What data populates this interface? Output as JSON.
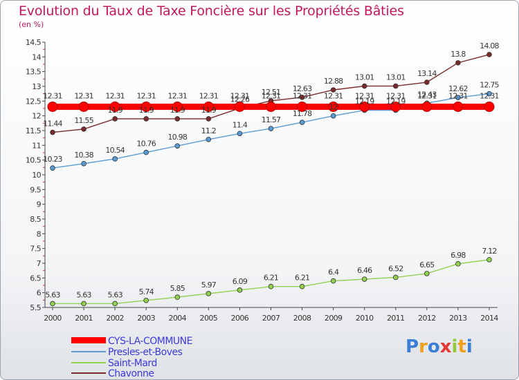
{
  "chart_data": {
    "type": "line",
    "title": "Evolution du Taux de Taxe Foncière sur les Propriétés Bâties",
    "unit_label": "(en %)",
    "xlabel": "",
    "ylabel": "",
    "categories": [
      "2000",
      "2001",
      "2002",
      "2003",
      "2004",
      "2005",
      "2006",
      "2007",
      "2008",
      "2009",
      "2010",
      "2011",
      "2012",
      "2013",
      "2014"
    ],
    "y_ticks": [
      "5.5",
      "6",
      "6.5",
      "7",
      "7.5",
      "8",
      "8.5",
      "9",
      "9.5",
      "10",
      "10.5",
      "11",
      "11.5",
      "12",
      "12.5",
      "13",
      "13.5",
      "14",
      "14.5"
    ],
    "ylim": [
      5.5,
      14.5
    ],
    "series": [
      {
        "name": "CYS-LA-COMMUNE",
        "color": "#ff0000",
        "values": [
          12.31,
          12.31,
          12.31,
          12.31,
          12.31,
          12.31,
          12.31,
          12.31,
          12.31,
          12.31,
          12.31,
          12.31,
          12.31,
          12.31,
          12.31
        ],
        "labels": [
          "12.31",
          "12.31",
          "12.31",
          "12.31",
          "12.31",
          "12.31",
          "12.31",
          "12.31",
          "12.31",
          "12.31",
          "12.31",
          "12.31",
          "12.31",
          "12.31",
          "12.31"
        ]
      },
      {
        "name": "Presles-et-Boves",
        "color": "#5b9bd5",
        "values": [
          10.23,
          10.38,
          10.54,
          10.76,
          10.98,
          11.2,
          11.4,
          11.57,
          11.78,
          12.0,
          12.19,
          12.19,
          12.43,
          12.62,
          12.75
        ],
        "labels": [
          "10.23",
          "10.38",
          "10.54",
          "10.76",
          "10.98",
          "11.2",
          "11.4",
          "11.57",
          "11.78",
          "12",
          "12.19",
          "12.19",
          "12.43",
          "12.62",
          "12.75"
        ]
      },
      {
        "name": "Saint-Mard",
        "color": "#92d050",
        "values": [
          5.63,
          5.63,
          5.63,
          5.74,
          5.85,
          5.97,
          6.09,
          6.21,
          6.21,
          6.4,
          6.46,
          6.52,
          6.65,
          6.98,
          7.12
        ],
        "labels": [
          "5.63",
          "5.63",
          "5.63",
          "5.74",
          "5.85",
          "5.97",
          "6.09",
          "6.21",
          "6.21",
          "6.4",
          "6.46",
          "6.52",
          "6.65",
          "6.98",
          "7.12"
        ]
      },
      {
        "name": "Chavonne",
        "color": "#7b2a2a",
        "values": [
          11.44,
          11.55,
          11.9,
          11.9,
          11.9,
          11.9,
          12.26,
          12.51,
          12.63,
          12.88,
          13.01,
          13.01,
          13.14,
          13.8,
          14.08
        ],
        "labels": [
          "11.44",
          "11.55",
          "11.9",
          "11.9",
          "11.9",
          "11.9",
          "12.26",
          "12.51",
          "12.63",
          "12.88",
          "13.01",
          "13.01",
          "13.14",
          "13.8",
          "14.08"
        ]
      }
    ],
    "legend_position": "bottom-left",
    "grid": false
  },
  "legend": {
    "items": [
      {
        "label": "CYS-LA-COMMUNE",
        "color": "#ff0000"
      },
      {
        "label": "Presles-et-Boves",
        "color": "#5b9bd5"
      },
      {
        "label": "Saint-Mard",
        "color": "#92d050"
      },
      {
        "label": "Chavonne",
        "color": "#7b2a2a"
      }
    ]
  },
  "logo": {
    "letters": [
      "P",
      "r",
      "o",
      "x",
      "i",
      "t",
      "i"
    ],
    "colors": [
      "#3a7fd5",
      "#f0a020",
      "#3a7fd5",
      "#e53935",
      "#92c83e",
      "#f0a020",
      "#3a7fd5"
    ]
  }
}
